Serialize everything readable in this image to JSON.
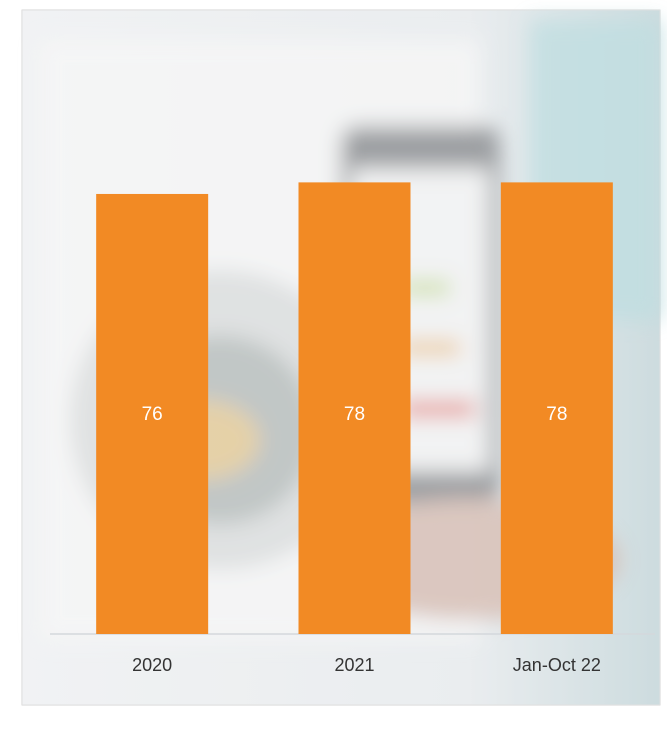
{
  "chart_data": {
    "type": "bar",
    "categories": [
      "2020",
      "2021",
      "Jan-Oct 22"
    ],
    "values": [
      76,
      78,
      78
    ],
    "color": "#f28a24",
    "ylim": [
      0,
      100
    ]
  }
}
